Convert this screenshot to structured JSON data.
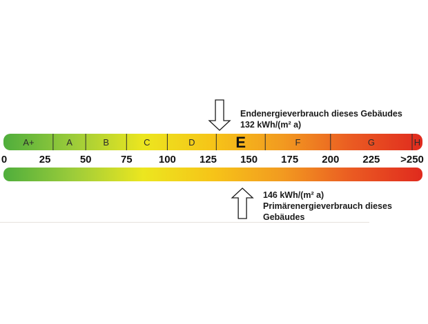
{
  "chart_data": {
    "type": "bar",
    "xlim": [
      0,
      250
    ],
    "scale_ticks": [
      {
        "value": 0,
        "label": "0"
      },
      {
        "value": 25,
        "label": "25"
      },
      {
        "value": 50,
        "label": "50"
      },
      {
        "value": 75,
        "label": "75"
      },
      {
        "value": 100,
        "label": "100"
      },
      {
        "value": 125,
        "label": "125"
      },
      {
        "value": 150,
        "label": "150"
      },
      {
        "value": 175,
        "label": "175"
      },
      {
        "value": 200,
        "label": "200"
      },
      {
        "value": 225,
        "label": "225"
      },
      {
        "value": 250,
        "label": ">250"
      }
    ],
    "classes": [
      {
        "label": "A+",
        "from": 0,
        "to": 30
      },
      {
        "label": "A",
        "from": 30,
        "to": 50
      },
      {
        "label": "B",
        "from": 50,
        "to": 75
      },
      {
        "label": "C",
        "from": 75,
        "to": 100
      },
      {
        "label": "D",
        "from": 100,
        "to": 130
      },
      {
        "label": "E",
        "from": 130,
        "to": 160,
        "highlighted": true
      },
      {
        "label": "F",
        "from": 160,
        "to": 200
      },
      {
        "label": "G",
        "from": 200,
        "to": 250
      },
      {
        "label": "H",
        "from": 250,
        "to": 270
      }
    ],
    "markers": [
      {
        "id": "final",
        "value": 132,
        "direction": "down",
        "position": "above",
        "lines": [
          "Endenergieverbrauch dieses Gebäudes",
          "132 kWh/(m² a)"
        ]
      },
      {
        "id": "primary",
        "value": 146,
        "direction": "up",
        "position": "below",
        "lines": [
          "146 kWh/(m² a)",
          "Primärenergieverbrauch dieses",
          "Gebäudes"
        ]
      }
    ],
    "gradient_colors": [
      "#4fae3c",
      "#9ccc3a",
      "#ece61f",
      "#f6c418",
      "#f29a20",
      "#ea5a22",
      "#e02a1e"
    ]
  }
}
